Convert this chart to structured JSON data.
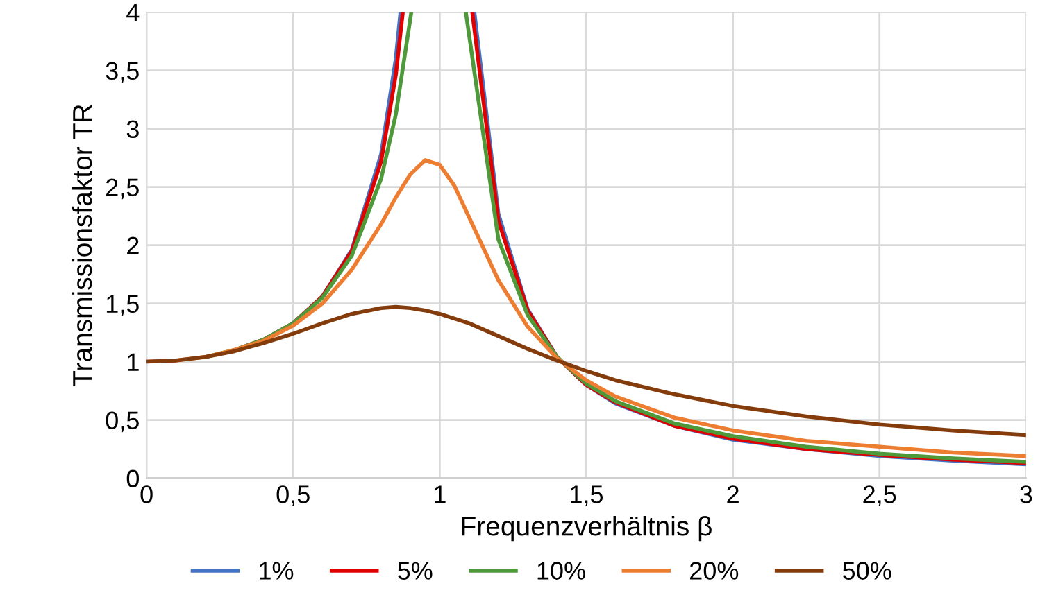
{
  "chart_data": {
    "type": "line",
    "xlabel": "Frequenzverhältnis β",
    "ylabel": "Transmissionsfaktor TR",
    "xlim": [
      0,
      3
    ],
    "ylim": [
      0,
      4
    ],
    "xticks": [
      0,
      {
        "value": 0.5,
        "label": "0,5"
      },
      1,
      {
        "value": 1.5,
        "label": "1,5"
      },
      2,
      {
        "value": 2.5,
        "label": "2,5"
      },
      3
    ],
    "yticks": [
      0,
      {
        "value": 0.5,
        "label": "0,5"
      },
      1,
      {
        "value": 1.5,
        "label": "1,5"
      },
      2,
      {
        "value": 2.5,
        "label": "2,5"
      },
      3,
      {
        "value": 3.5,
        "label": "3,5"
      },
      4
    ],
    "grid": true,
    "legend": "bottom",
    "marker": "none",
    "line_style": "solid",
    "series": [
      {
        "name": "1%",
        "color": "#4472c4",
        "x": [
          0.4,
          0.5,
          0.6,
          0.7,
          0.8,
          0.85,
          0.866,
          1.0,
          1.118,
          1.2,
          1.3,
          1.4,
          1.5,
          1.6,
          1.8,
          2.0,
          2.25,
          2.5,
          2.75,
          3.0
        ],
        "values": [
          1.19,
          1.33,
          1.56,
          1.96,
          2.78,
          3.6,
          4,
          null,
          4,
          2.27,
          1.45,
          1.04,
          0.8,
          0.64,
          0.45,
          0.33,
          0.25,
          0.19,
          0.15,
          0.12
        ]
      },
      {
        "name": "5%",
        "color": "#e00000",
        "x": [
          0.3,
          0.4,
          0.5,
          0.6,
          0.7,
          0.8,
          0.85,
          0.874,
          1.0,
          1.111,
          1.2,
          1.3,
          1.4,
          1.5,
          1.6,
          1.8,
          2.0,
          2.25,
          2.5,
          2.75,
          3.0
        ],
        "values": [
          1.1,
          1.19,
          1.33,
          1.56,
          1.95,
          2.72,
          3.46,
          4,
          null,
          4,
          2.21,
          1.44,
          1.04,
          0.8,
          0.65,
          0.45,
          0.34,
          0.25,
          0.2,
          0.16,
          0.13
        ]
      },
      {
        "name": "10%",
        "color": "#4e9a3a",
        "x": [
          0.2,
          0.3,
          0.4,
          0.5,
          0.6,
          0.7,
          0.8,
          0.85,
          0.903,
          1.0,
          1.089,
          1.2,
          1.3,
          1.4,
          1.5,
          1.6,
          1.8,
          2.0,
          2.25,
          2.5,
          2.75,
          3.0
        ],
        "values": [
          1.04,
          1.1,
          1.19,
          1.33,
          1.55,
          1.91,
          2.57,
          3.12,
          4,
          null,
          4,
          2.05,
          1.4,
          1.04,
          0.81,
          0.66,
          0.47,
          0.36,
          0.27,
          0.21,
          0.17,
          0.14
        ]
      },
      {
        "name": "20%",
        "color": "#ed7d31",
        "x": [
          0,
          0.1,
          0.2,
          0.3,
          0.4,
          0.5,
          0.6,
          0.7,
          0.8,
          0.85,
          0.9,
          0.95,
          1.0,
          1.05,
          1.1,
          1.2,
          1.3,
          1.4,
          1.5,
          1.6,
          1.8,
          2.0,
          2.25,
          2.5,
          2.75,
          3.0
        ],
        "values": [
          1,
          1.01,
          1.04,
          1.1,
          1.18,
          1.31,
          1.5,
          1.79,
          2.18,
          2.41,
          2.61,
          2.73,
          2.69,
          2.51,
          2.24,
          1.7,
          1.3,
          1.03,
          0.84,
          0.7,
          0.52,
          0.41,
          0.32,
          0.27,
          0.22,
          0.19
        ]
      },
      {
        "name": "50%",
        "color": "#843c0c",
        "x": [
          0,
          0.1,
          0.2,
          0.3,
          0.4,
          0.5,
          0.6,
          0.7,
          0.8,
          0.85,
          0.9,
          0.95,
          1.0,
          1.05,
          1.1,
          1.2,
          1.3,
          1.4,
          1.5,
          1.6,
          1.8,
          2.0,
          2.25,
          2.5,
          2.75,
          3.0
        ],
        "values": [
          1,
          1.01,
          1.04,
          1.09,
          1.16,
          1.24,
          1.33,
          1.41,
          1.46,
          1.47,
          1.46,
          1.44,
          1.41,
          1.37,
          1.33,
          1.22,
          1.11,
          1.01,
          0.92,
          0.84,
          0.72,
          0.62,
          0.53,
          0.46,
          0.41,
          0.37
        ]
      }
    ]
  }
}
